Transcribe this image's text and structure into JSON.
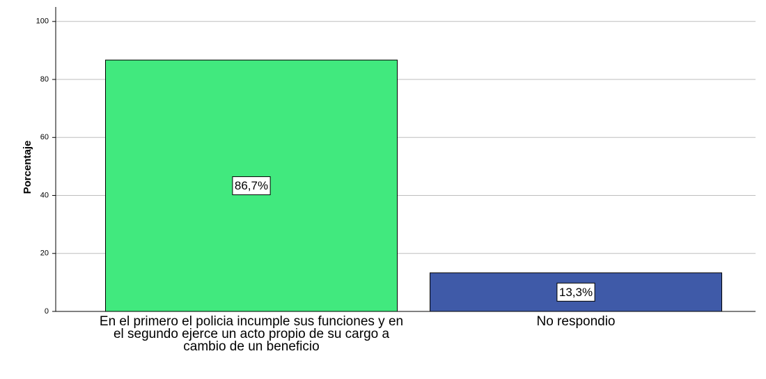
{
  "chart_data": {
    "type": "bar",
    "y_label": "Porcentaje",
    "categories": [
      "En el primero el policia incumple sus funciones y en el segundo ejerce un acto propio de su cargo a cambio de un beneficio",
      "No respondio"
    ],
    "values": [
      86.7,
      13.3
    ],
    "value_labels": [
      "86,7%",
      "13,3%"
    ],
    "colors": [
      "#41e97e",
      "#3f5aa8"
    ],
    "ylim": [
      0,
      105
    ],
    "yticks": [
      0,
      20,
      40,
      60,
      80,
      100
    ],
    "grid": true
  }
}
